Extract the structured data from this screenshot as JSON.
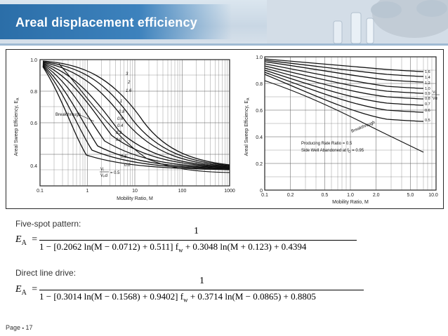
{
  "header": {
    "title": "Areal displacement efficiency"
  },
  "left_chart": {
    "ylabel": "Areal Sweep Efficiency, E",
    "ylabel_sub": "A",
    "xlabel": "Mobility Ratio, M",
    "yticks": [
      "1.0",
      "0.8",
      "0.6",
      "0.4"
    ],
    "xticks": [
      "0.1",
      "1",
      "10",
      "100",
      "1000"
    ],
    "curve_labels": [
      "3",
      "2",
      "1.6",
      "1",
      "0.8",
      "0.6",
      "0.4",
      "0.2",
      "0.0",
      "0.6",
      "0.0"
    ],
    "breakthrough_label": "Breakthrough",
    "vi_label": "Vᵢ",
    "vpd_label": "Vₚd",
    "vi_value": "= 0.5"
  },
  "right_chart": {
    "ylabel": "Areal Sweep Efficiency, E",
    "ylabel_sub": "A",
    "xlabel": "Mobility Ratio, M",
    "yticks": [
      "1.0",
      "0.8",
      "0.6",
      "0.4",
      "0.2",
      "0"
    ],
    "xticks": [
      "0.1",
      "0.2",
      "0.5",
      "1.0",
      "2.0",
      "5.0",
      "10.0"
    ],
    "curve_labels": [
      "1.6",
      "1.4",
      "1.2",
      "1.0",
      "0.9",
      "0.8",
      "0.7",
      "0.6",
      "0.5"
    ],
    "vi_label": "Vᵢ",
    "vd_label": "Vd",
    "breakthrough_label": "Breakthrough",
    "note_line1": "Producing Rate Ratio = 0.5",
    "note_line2": "Side Well Abandoned at f",
    "note_line2_sub": "D",
    "note_line2_end": " = 0.95"
  },
  "five_spot": {
    "title": "Five-spot pattern:",
    "numerator": "1",
    "denominator": "1 − [0.2062 ln(M − 0.0712) + 0.511] f",
    "denominator_sub": "w",
    "denominator_end": " + 0.3048 ln(M + 0.123) + 0.4394"
  },
  "direct_line": {
    "title": "Direct line drive:",
    "numerator": "1",
    "denominator": "1 − [0.3014 ln(M − 0.1568) + 0.9402] f",
    "denominator_sub": "w",
    "denominator_end": " + 0.3714 ln(M − 0.0865) + 0.8805"
  },
  "equation_lhs": "E",
  "equation_lhs_sub": "A",
  "equation_eq": "=",
  "footer": {
    "label": "Page",
    "bullet": "▪",
    "page": "17"
  },
  "colors": {
    "header_blue": "#2b6ea8",
    "grid": "#555555",
    "curve": "#111111"
  }
}
